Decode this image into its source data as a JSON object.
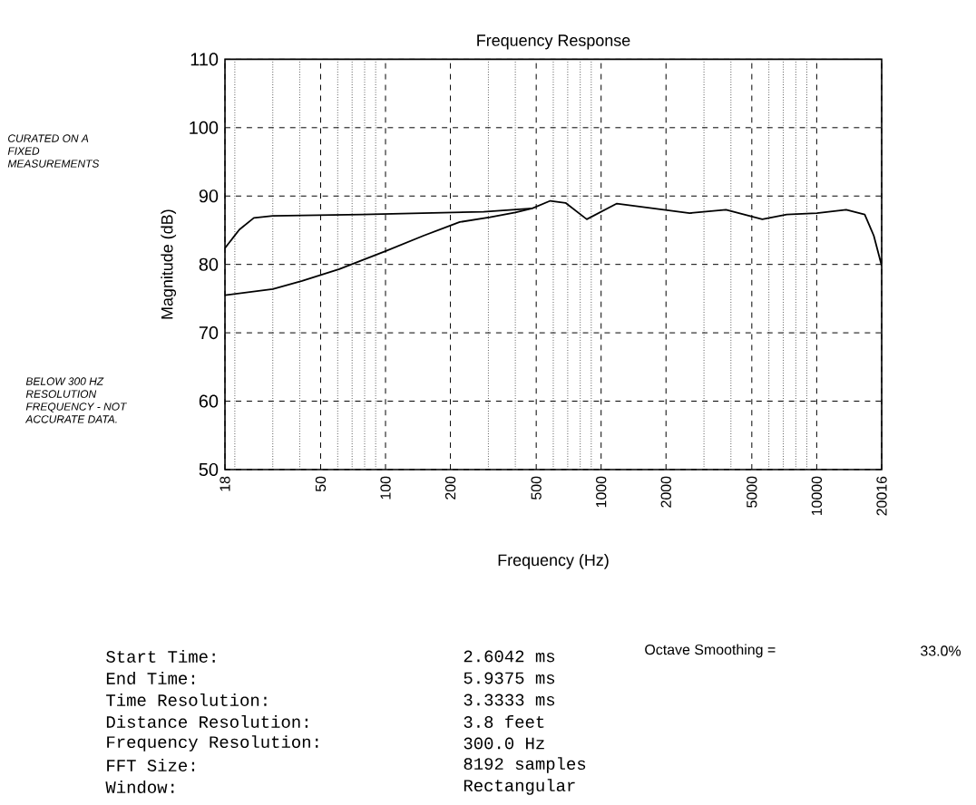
{
  "chart_data": {
    "type": "line",
    "title": "Frequency Response",
    "xlabel": "Frequency (Hz)",
    "ylabel": "Magnitude (dB)",
    "log": "x",
    "grid": true,
    "xlim": [
      18,
      20016
    ],
    "ylim": [
      50,
      110
    ],
    "xticks": [
      18,
      50,
      100,
      200,
      500,
      1000,
      2000,
      5000,
      10000,
      20016,
      {
        "value": 20,
        "label": null
      },
      {
        "value": 30,
        "label": null
      },
      {
        "value": 40,
        "label": null
      },
      {
        "value": 60,
        "label": null
      },
      {
        "value": 70,
        "label": null
      },
      {
        "value": 80,
        "label": null
      },
      {
        "value": 90,
        "label": null
      },
      {
        "value": 300,
        "label": null
      },
      {
        "value": 400,
        "label": null
      },
      {
        "value": 600,
        "label": null
      },
      {
        "value": 700,
        "label": null
      },
      {
        "value": 800,
        "label": null
      },
      {
        "value": 900,
        "label": null
      },
      {
        "value": 3000,
        "label": null
      },
      {
        "value": 4000,
        "label": null
      },
      {
        "value": 6000,
        "label": null
      },
      {
        "value": 7000,
        "label": null
      },
      {
        "value": 8000,
        "label": null
      },
      {
        "value": 9000,
        "label": null
      }
    ],
    "yticks": [
      50,
      60,
      70,
      80,
      90,
      100,
      110
    ],
    "series": [
      {
        "color": "#000000",
        "x": [
          18,
          21,
          24.5,
          30,
          78,
          285,
          479,
          581,
          684,
          858,
          1183,
          1747,
          2573,
          3795,
          5593,
          7263,
          10020,
          13700,
          16700,
          18400,
          20016
        ],
        "values": [
          82.4,
          85.1,
          86.8,
          87.1,
          87.3,
          87.7,
          88.2,
          89.3,
          89.0,
          86.6,
          88.9,
          88.2,
          87.5,
          88.0,
          86.6,
          87.3,
          87.5,
          88.0,
          87.3,
          84.2,
          79.8
        ]
      },
      {
        "color": "#000000",
        "x": [
          18,
          30,
          41,
          61,
          101,
          150,
          221,
          305,
          400,
          479
        ],
        "values": [
          75.5,
          76.4,
          77.6,
          79.3,
          82.0,
          84.2,
          86.2,
          86.9,
          87.6,
          88.2
        ]
      }
    ],
    "annotations": [
      "CURATED ON A FIXED MEASUREMENTS",
      "BELOW 300 HZ RESOLUTION FREQUENCY - NOT ACCURATE DATA.",
      "Start Time:",
      "2.6042 ms",
      "End Time:",
      "5.9375 ms",
      "Time Resolution:",
      "3.3333 ms",
      "Distance Resolution:",
      "3.8 feet",
      "Frequency Resolution:",
      "300.0 Hz",
      "FFT Size:",
      "8192 samples",
      "Window:",
      "Rectangular",
      "Octave Smoothing =",
      "33.0%"
    ]
  }
}
